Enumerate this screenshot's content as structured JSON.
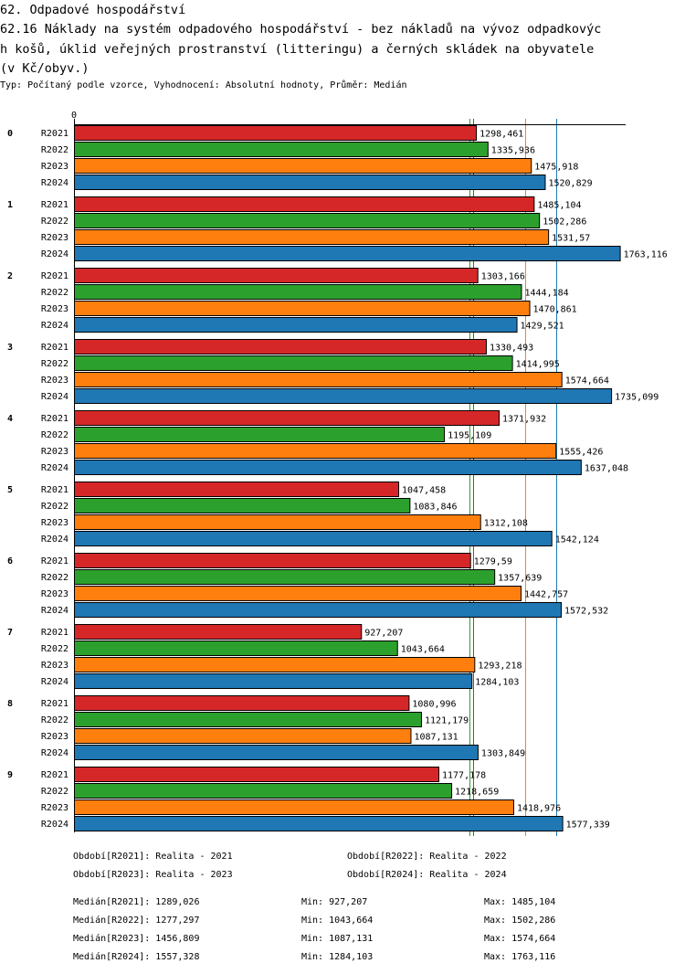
{
  "chart_data": {
    "type": "bar",
    "orientation": "horizontal",
    "title_lines": [
      "62. Odpadové hospodářství",
      "62.16 Náklady na systém odpadového hospodářství - bez nákladů na vývoz odpadkovýc",
      "h košů, úklid veřejných prostranství (litteringu) a černých skládek na obyvatele",
      "(v Kč/obyv.)"
    ],
    "subtitle": "Typ: Počítaný podle vzorce, Vyhodnocení: Absolutní hodnoty, Průměr: Medián",
    "x_tick_label": "0",
    "xlim": [
      0,
      1782
    ],
    "categories": [
      "0",
      "1",
      "2",
      "3",
      "4",
      "5",
      "6",
      "7",
      "8",
      "9"
    ],
    "series": [
      {
        "name": "R2021",
        "color": "#d62728",
        "values": [
          1298.461,
          1485.104,
          1303.166,
          1330.493,
          1371.932,
          1047.458,
          1279.59,
          927.207,
          1080.996,
          1177.178
        ]
      },
      {
        "name": "R2022",
        "color": "#2ca02c",
        "values": [
          1335.936,
          1502.286,
          1444.184,
          1414.995,
          1195.109,
          1083.846,
          1357.639,
          1043.664,
          1121.179,
          1218.659
        ]
      },
      {
        "name": "R2023",
        "color": "#ff7f0e",
        "values": [
          1475.918,
          1531.57,
          1470.861,
          1574.664,
          1555.426,
          1312.108,
          1442.757,
          1293.218,
          1087.131,
          1418.976
        ]
      },
      {
        "name": "R2024",
        "color": "#1f77b4",
        "values": [
          1520.829,
          1763.116,
          1429.521,
          1735.099,
          1637.048,
          1542.124,
          1572.532,
          1284.103,
          1303.849,
          1577.339
        ]
      }
    ],
    "median_lines": [
      {
        "series": "R2021",
        "value": 1289.026
      },
      {
        "series": "R2022",
        "value": 1277.297
      },
      {
        "series": "R2023",
        "value": 1456.809
      },
      {
        "series": "R2024",
        "value": 1557.328
      }
    ],
    "legend": [
      "Období[R2021]: Realita - 2021",
      "Období[R2022]: Realita - 2022",
      "Období[R2023]: Realita - 2023",
      "Období[R2024]: Realita - 2024"
    ],
    "stats": [
      {
        "median": "Medián[R2021]: 1289,026",
        "min": "Min: 927,207",
        "max": "Max: 1485,104"
      },
      {
        "median": "Medián[R2022]: 1277,297",
        "min": "Min: 1043,664",
        "max": "Max: 1502,286"
      },
      {
        "median": "Medián[R2023]: 1456,809",
        "min": "Min: 1087,131",
        "max": "Max: 1574,664"
      },
      {
        "median": "Medián[R2024]: 1557,328",
        "min": "Min: 1284,103",
        "max": "Max: 1763,116"
      }
    ]
  }
}
